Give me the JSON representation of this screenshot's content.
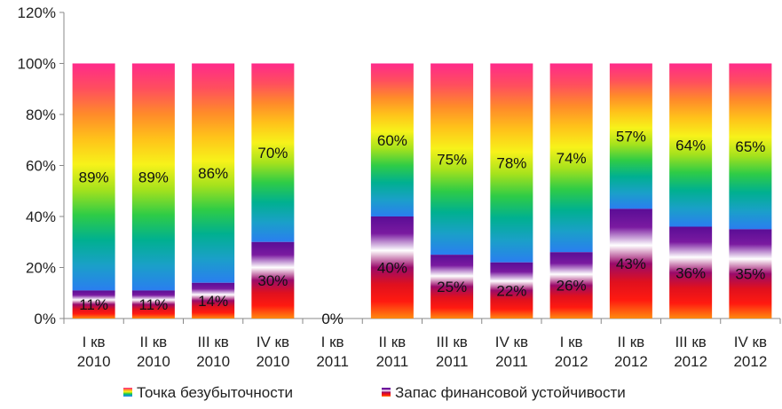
{
  "chart_data": {
    "type": "bar",
    "stacked": true,
    "categories": [
      [
        "I кв",
        "2010"
      ],
      [
        "II кв",
        "2010"
      ],
      [
        "III кв",
        "2010"
      ],
      [
        "IV кв",
        "2010"
      ],
      [
        "I кв",
        "2011"
      ],
      [
        "II кв",
        "2011"
      ],
      [
        "III кв",
        "2011"
      ],
      [
        "IV кв",
        "2011"
      ],
      [
        "I кв",
        "2012"
      ],
      [
        "II кв",
        "2012"
      ],
      [
        "III кв",
        "2012"
      ],
      [
        "IV кв",
        "2012"
      ]
    ],
    "series": [
      {
        "name": "Запас финансовой устойчивости",
        "values": [
          11,
          11,
          14,
          30,
          0,
          40,
          25,
          22,
          26,
          43,
          36,
          35
        ],
        "labels": [
          "11%",
          "11%",
          "14%",
          "30%",
          "0%",
          "40%",
          "25%",
          "22%",
          "26%",
          "43%",
          "36%",
          "35%"
        ]
      },
      {
        "name": "Точка безубыточности",
        "values": [
          89,
          89,
          86,
          70,
          0,
          60,
          75,
          78,
          74,
          57,
          64,
          65
        ],
        "labels": [
          "89%",
          "89%",
          "86%",
          "70%",
          "",
          "60%",
          "75%",
          "78%",
          "74%",
          "57%",
          "64%",
          "65%"
        ]
      }
    ],
    "y_ticks": [
      "0%",
      "20%",
      "40%",
      "60%",
      "80%",
      "100%",
      "120%"
    ],
    "ylim": [
      0,
      120
    ],
    "grid": false,
    "legend_position": "bottom",
    "colors": {
      "rainbow": [
        "#ff2a8a",
        "#ff4e5e",
        "#ff8a2a",
        "#ffc21a",
        "#f7f21a",
        "#a6e21c",
        "#2fcc46",
        "#00b090",
        "#1aa0c8",
        "#2a7ef0"
      ],
      "purple_band": [
        "#5a0d96",
        "#7a1aa0",
        "#ffffff",
        "#9a0a6a",
        "#e0101e",
        "#ff1a10",
        "#ff8a10"
      ]
    }
  }
}
